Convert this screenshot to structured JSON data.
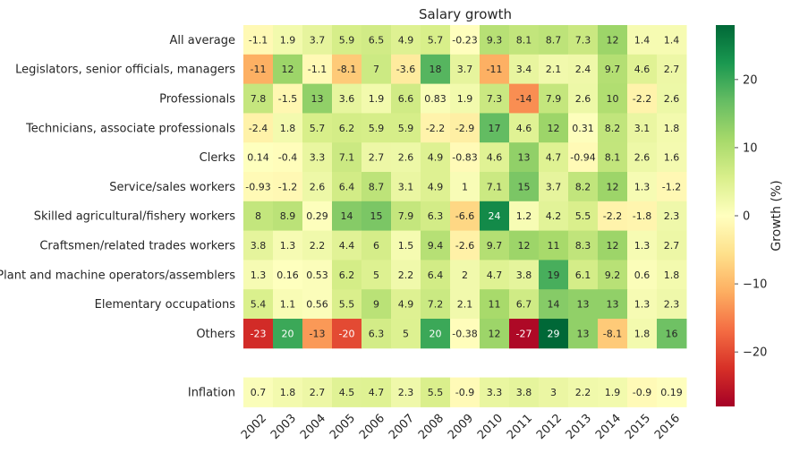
{
  "chart_data": {
    "type": "heatmap",
    "title": "Salary growth",
    "colorbar_label": "Growth (%)",
    "colormap": "RdYlGn",
    "vmin": -28,
    "vmax": 28,
    "colorbar_ticks": [
      -20,
      -10,
      0,
      10,
      20
    ],
    "colorbar_tick_labels": [
      "−20",
      "−10",
      "0",
      "10",
      "20"
    ],
    "columns": [
      "2002",
      "2003",
      "2004",
      "2005",
      "2006",
      "2007",
      "2008",
      "2009",
      "2010",
      "2011",
      "2012",
      "2013",
      "2014",
      "2015",
      "2016"
    ],
    "rows": [
      {
        "label": "All average",
        "values": [
          -1.1,
          1.9,
          3.7,
          5.9,
          6.5,
          4.9,
          5.7,
          -0.23,
          9.3,
          8.1,
          8.7,
          7.3,
          12,
          1.4,
          1.4
        ],
        "text": [
          "-1.1",
          "1.9",
          "3.7",
          "5.9",
          "6.5",
          "4.9",
          "5.7",
          "-0.23",
          "9.3",
          "8.1",
          "8.7",
          "7.3",
          "12",
          "1.4",
          "1.4"
        ]
      },
      {
        "label": "Legislators, senior officials, managers",
        "values": [
          -11,
          12,
          -1.1,
          -8.1,
          7,
          -3.6,
          18,
          3.7,
          -11,
          3.4,
          2.1,
          2.4,
          9.7,
          4.6,
          2.7
        ],
        "text": [
          "-11",
          "12",
          "-1.1",
          "-8.1",
          "7",
          "-3.6",
          "18",
          "3.7",
          "-11",
          "3.4",
          "2.1",
          "2.4",
          "9.7",
          "4.6",
          "2.7"
        ]
      },
      {
        "label": "Professionals",
        "values": [
          7.8,
          -1.5,
          13,
          3.6,
          1.9,
          6.6,
          0.83,
          1.9,
          7.3,
          -14,
          7.9,
          2.6,
          10,
          -2.2,
          2.6
        ],
        "text": [
          "7.8",
          "-1.5",
          "13",
          "3.6",
          "1.9",
          "6.6",
          "0.83",
          "1.9",
          "7.3",
          "-14",
          "7.9",
          "2.6",
          "10",
          "-2.2",
          "2.6"
        ]
      },
      {
        "label": "Technicians, associate professionals",
        "values": [
          -2.4,
          1.8,
          5.7,
          6.2,
          5.9,
          5.9,
          -2.2,
          -2.9,
          17,
          4.6,
          12,
          0.31,
          8.2,
          3.1,
          1.8
        ],
        "text": [
          "-2.4",
          "1.8",
          "5.7",
          "6.2",
          "5.9",
          "5.9",
          "-2.2",
          "-2.9",
          "17",
          "4.6",
          "12",
          "0.31",
          "8.2",
          "3.1",
          "1.8"
        ]
      },
      {
        "label": "Clerks",
        "values": [
          0.14,
          -0.4,
          3.3,
          7.1,
          2.7,
          2.6,
          4.9,
          -0.83,
          4.6,
          13,
          4.7,
          -0.94,
          8.1,
          2.6,
          1.6
        ],
        "text": [
          "0.14",
          "-0.4",
          "3.3",
          "7.1",
          "2.7",
          "2.6",
          "4.9",
          "-0.83",
          "4.6",
          "13",
          "4.7",
          "-0.94",
          "8.1",
          "2.6",
          "1.6"
        ]
      },
      {
        "label": "Service/sales workers",
        "values": [
          -0.93,
          -1.2,
          2.6,
          6.4,
          8.7,
          3.1,
          4.9,
          1,
          7.1,
          15,
          3.7,
          8.2,
          12,
          1.3,
          -1.2
        ],
        "text": [
          "-0.93",
          "-1.2",
          "2.6",
          "6.4",
          "8.7",
          "3.1",
          "4.9",
          "1",
          "7.1",
          "15",
          "3.7",
          "8.2",
          "12",
          "1.3",
          "-1.2"
        ]
      },
      {
        "label": "Skilled agricultural/fishery workers",
        "values": [
          8,
          8.9,
          0.29,
          14,
          15,
          7.9,
          6.3,
          -6.6,
          24,
          1.2,
          4.2,
          5.5,
          -2.2,
          -1.8,
          2.3
        ],
        "text": [
          "8",
          "8.9",
          "0.29",
          "14",
          "15",
          "7.9",
          "6.3",
          "-6.6",
          "24",
          "1.2",
          "4.2",
          "5.5",
          "-2.2",
          "-1.8",
          "2.3"
        ]
      },
      {
        "label": "Craftsmen/related trades workers",
        "values": [
          3.8,
          1.3,
          2.2,
          4.4,
          6,
          1.5,
          9.4,
          -2.6,
          9.7,
          12,
          11,
          8.3,
          12,
          1.3,
          2.7
        ],
        "text": [
          "3.8",
          "1.3",
          "2.2",
          "4.4",
          "6",
          "1.5",
          "9.4",
          "-2.6",
          "9.7",
          "12",
          "11",
          "8.3",
          "12",
          "1.3",
          "2.7"
        ]
      },
      {
        "label": "Plant and machine operators/assemblers",
        "values": [
          1.3,
          0.16,
          0.53,
          6.2,
          5,
          2.2,
          6.4,
          2,
          4.7,
          3.8,
          19,
          6.1,
          9.2,
          0.6,
          1.8
        ],
        "text": [
          "1.3",
          "0.16",
          "0.53",
          "6.2",
          "5",
          "2.2",
          "6.4",
          "2",
          "4.7",
          "3.8",
          "19",
          "6.1",
          "9.2",
          "0.6",
          "1.8"
        ]
      },
      {
        "label": "Elementary occupations",
        "values": [
          5.4,
          1.1,
          0.56,
          5.5,
          9,
          4.9,
          7.2,
          2.1,
          11,
          6.7,
          14,
          13,
          13,
          1.3,
          2.3
        ],
        "text": [
          "5.4",
          "1.1",
          "0.56",
          "5.5",
          "9",
          "4.9",
          "7.2",
          "2.1",
          "11",
          "6.7",
          "14",
          "13",
          "13",
          "1.3",
          "2.3"
        ]
      },
      {
        "label": "Others",
        "values": [
          -23,
          20,
          -13,
          -20,
          6.3,
          5,
          20,
          -0.38,
          12,
          -27,
          29,
          13,
          -8.1,
          1.8,
          16
        ],
        "text": [
          "-23",
          "20",
          "-13",
          "-20",
          "6.3",
          "5",
          "20",
          "-0.38",
          "12",
          "-27",
          "29",
          "13",
          "-8.1",
          "1.8",
          "16"
        ]
      },
      {
        "label": "",
        "values": [
          null,
          null,
          null,
          null,
          null,
          null,
          null,
          null,
          null,
          null,
          null,
          null,
          null,
          null,
          null
        ],
        "text": [
          "",
          "",
          "",
          "",
          "",
          "",
          "",
          "",
          "",
          "",
          "",
          "",
          "",
          "",
          ""
        ]
      },
      {
        "label": "Inflation",
        "values": [
          0.7,
          1.8,
          2.7,
          4.5,
          4.7,
          2.3,
          5.5,
          -0.9,
          3.3,
          3.8,
          3,
          2.2,
          1.9,
          -0.9,
          0.19
        ],
        "text": [
          "0.7",
          "1.8",
          "2.7",
          "4.5",
          "4.7",
          "2.3",
          "5.5",
          "-0.9",
          "3.3",
          "3.8",
          "3",
          "2.2",
          "1.9",
          "-0.9",
          "0.19"
        ]
      }
    ]
  }
}
